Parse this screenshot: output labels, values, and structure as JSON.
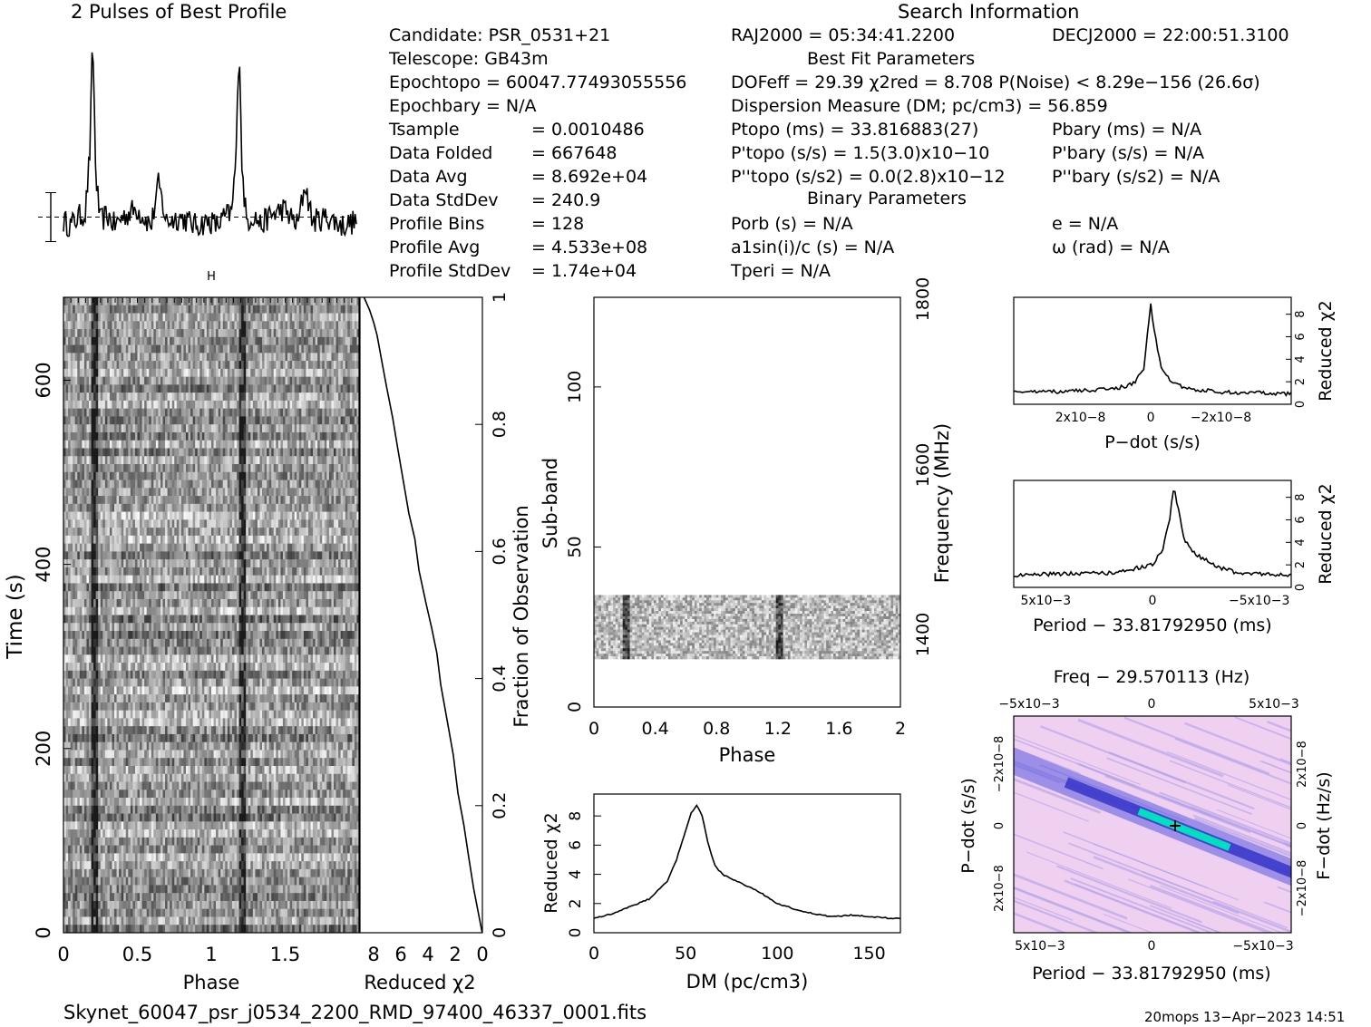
{
  "header": {
    "profile_title": "2 Pulses of Best Profile",
    "search_title": "Search Information",
    "best_fit_title": "Best Fit Parameters",
    "binary_title": "Binary Parameters"
  },
  "params": {
    "candidate": "Candidate:  PSR_0531+21",
    "telescope": "Telescope:  GB43m",
    "epoch_topo": "Epochtopo = 60047.77493055556",
    "epoch_bary": "Epochbary = N/A",
    "t_sample_label": "Tsample",
    "t_sample_value": "=   0.0010486",
    "data_folded": [
      "Data Folded",
      "=   667648"
    ],
    "data_avg": [
      "Data Avg",
      "=   8.692e+04"
    ],
    "data_stddev": [
      "Data StdDev",
      "=   240.9"
    ],
    "profile_bins": [
      "Profile Bins",
      "=   128"
    ],
    "profile_avg": [
      "Profile Avg",
      "=   4.533e+08"
    ],
    "profile_stddev": [
      "Profile StdDev",
      "=   1.74e+04"
    ]
  },
  "search": {
    "ra": "RAJ2000 = 05:34:41.2200",
    "dec": "DECJ2000 = 22:00:51.3100",
    "dof": "DOFeff = 29.39  χ2red = 8.708  P(Noise) < 8.29e−156  (26.6σ)",
    "dm": "Dispersion Measure (DM; pc/cm3) = 56.859",
    "p_topo": "Ptopo (ms) =  33.816883(27)",
    "p_bary": "Pbary (ms) = N/A",
    "pd_topo": "P'topo (s/s) =  1.5(3.0)x10−10",
    "pd_bary": "P'bary (s/s) = N/A",
    "pdd_topo": "P''topo (s/s2) = 0.0(2.8)x10−12",
    "pdd_bary": "P''bary (s/s2) = N/A",
    "p_orb": "Porb (s) = N/A",
    "e": "e = N/A",
    "a1sini": "a1sin(i)/c (s) = N/A",
    "omega": "ω (rad) = N/A",
    "t_peri": "Tperi = N/A"
  },
  "footer": {
    "filename": "Skynet_60047_psr_j0534_2200_RMD_97400_46337_0001.fits",
    "stamp": "20mops 13−Apr−2023 14:51"
  },
  "colors": {
    "ink": "#000000",
    "ppdot_low": "#f0d0f0",
    "ppdot_mid": "#5a5ae0",
    "ppdot_high": "#00e0c0"
  },
  "chart_data": [
    {
      "type": "line",
      "id": "profile",
      "title": "2 Pulses of Best Profile",
      "xlim": [
        0,
        2
      ],
      "x": [
        0.0,
        0.05,
        0.1,
        0.15,
        0.18,
        0.2,
        0.22,
        0.25,
        0.3,
        0.35,
        0.4,
        0.5,
        0.6,
        0.65,
        0.7,
        0.8,
        0.9,
        1.0,
        1.05,
        1.1,
        1.15,
        1.18,
        1.2,
        1.22,
        1.25,
        1.3,
        1.35,
        1.4,
        1.5,
        1.6,
        1.65,
        1.7,
        1.8,
        1.9,
        2.0
      ],
      "values": [
        0.12,
        0.1,
        0.14,
        0.16,
        0.45,
        1.0,
        0.35,
        0.12,
        0.15,
        0.1,
        0.14,
        0.18,
        0.1,
        0.3,
        0.12,
        0.14,
        0.1,
        0.12,
        0.1,
        0.14,
        0.16,
        0.45,
        1.0,
        0.35,
        0.12,
        0.15,
        0.1,
        0.14,
        0.18,
        0.1,
        0.3,
        0.12,
        0.14,
        0.1,
        0.12
      ]
    },
    {
      "type": "heatmap",
      "id": "time-phase",
      "xlabel": "Phase",
      "ylabel": "Time (s)",
      "xlim": [
        0,
        2
      ],
      "ylim": [
        0,
        690
      ],
      "x_ticks": [
        "0",
        "0.5",
        "1",
        "1.5"
      ],
      "y_ticks": [
        "0",
        "200",
        "400",
        "600"
      ],
      "pulse_phases": [
        0.21,
        1.21
      ]
    },
    {
      "type": "line",
      "id": "reduced-chi2-time",
      "xlabel": "Reduced χ2",
      "ylabel": "Fraction of Observation",
      "xlim": [
        9,
        0
      ],
      "ylim": [
        0,
        1
      ],
      "x_ticks": [
        "8",
        "6",
        "4",
        "2",
        "0"
      ],
      "y_ticks": [
        "0",
        "0.2",
        "0.4",
        "0.6",
        "0.8",
        "1"
      ],
      "x": [
        0.0,
        0.3,
        0.7,
        1.0,
        1.4,
        1.8,
        2.2,
        2.6,
        3.0,
        3.4,
        3.8,
        4.2,
        4.6,
        5.0,
        5.4,
        5.8,
        6.2,
        6.6,
        7.0,
        7.4,
        7.8,
        8.0,
        8.3,
        8.7
      ],
      "y": [
        0.0,
        0.03,
        0.07,
        0.12,
        0.17,
        0.22,
        0.28,
        0.34,
        0.39,
        0.44,
        0.48,
        0.52,
        0.57,
        0.62,
        0.66,
        0.71,
        0.76,
        0.81,
        0.86,
        0.9,
        0.94,
        0.96,
        0.98,
        1.0
      ]
    },
    {
      "type": "heatmap",
      "id": "subband-phase",
      "xlabel": "Phase",
      "ylabel": "Sub-band",
      "y2label": "Frequency (MHz)",
      "xlim": [
        0,
        2
      ],
      "ylim": [
        0,
        128
      ],
      "x_ticks": [
        "0",
        "0.4",
        "0.8",
        "1.2",
        "1.6",
        "2"
      ],
      "y_ticks": [
        "0",
        "50",
        "100"
      ],
      "y2_ticks": [
        "1400",
        "1600",
        "1800"
      ],
      "data_subbands": [
        15,
        35
      ],
      "pulse_phases": [
        0.21,
        1.21
      ]
    },
    {
      "type": "line",
      "id": "dm-chi2",
      "xlabel": "DM (pc/cm3)",
      "ylabel": "Reduced χ2",
      "xlim": [
        0,
        167
      ],
      "ylim": [
        0,
        9.5
      ],
      "x_ticks": [
        "0",
        "50",
        "100",
        "150"
      ],
      "y_ticks": [
        "0",
        "2",
        "4",
        "6",
        "8"
      ],
      "x": [
        0,
        10,
        20,
        30,
        40,
        45,
        50,
        53,
        56,
        59,
        62,
        66,
        70,
        80,
        90,
        100,
        110,
        120,
        130,
        140,
        150,
        160,
        167
      ],
      "y": [
        1.0,
        1.3,
        1.8,
        2.3,
        3.5,
        5.0,
        7.0,
        8.2,
        8.7,
        8.0,
        6.2,
        4.6,
        4.0,
        3.4,
        2.8,
        2.0,
        1.6,
        1.3,
        1.1,
        1.2,
        1.1,
        1.0,
        1.0
      ]
    },
    {
      "type": "line",
      "id": "pdot-chi2",
      "xlabel": "P−dot (s/s)",
      "ylabel": "Reduced χ2",
      "xlim": [
        3.9e-08,
        -4e-08
      ],
      "ylim": [
        0,
        9.5
      ],
      "x_ticks": [
        "2x10−8",
        "0",
        "−2x10−8"
      ],
      "y_ticks": [
        "0",
        "2",
        "4",
        "6",
        "8"
      ],
      "x": [
        3.9e-08,
        3e-08,
        2e-08,
        1e-08,
        5e-09,
        2e-09,
        1e-09,
        0.0,
        -1e-09,
        -3e-09,
        -6e-09,
        -1e-08,
        -2e-08,
        -3e-08,
        -4e-08
      ],
      "y": [
        1.0,
        1.1,
        1.2,
        1.4,
        1.8,
        3.0,
        6.0,
        9.0,
        6.5,
        3.2,
        2.0,
        1.4,
        1.1,
        1.0,
        0.9
      ]
    },
    {
      "type": "line",
      "id": "period-chi2",
      "xlabel": "Period − 33.81792950 (ms)",
      "ylabel": "Reduced χ2",
      "xlim": [
        0.0065,
        -0.0065
      ],
      "ylim": [
        0,
        9.5
      ],
      "x_ticks": [
        "5x10−3",
        "0",
        "−5x10−3"
      ],
      "y_ticks": [
        "0",
        "2",
        "4",
        "6",
        "8"
      ],
      "x": [
        0.0065,
        0.004,
        0.002,
        0.001,
        0.0,
        -0.0005,
        -0.0008,
        -0.001,
        -0.0012,
        -0.0015,
        -0.002,
        -0.003,
        -0.004,
        -0.005,
        -0.0065
      ],
      "y": [
        1.1,
        1.2,
        1.3,
        1.6,
        2.0,
        3.5,
        6.0,
        9.0,
        7.0,
        4.2,
        3.0,
        1.8,
        1.3,
        1.2,
        1.1
      ]
    },
    {
      "type": "heatmap",
      "id": "p-pdot",
      "title": "Freq − 29.570113 (Hz)",
      "xlabel": "Period − 33.81792950 (ms)",
      "ylabel": "P−dot (s/s)",
      "y2label": "F−dot (Hz/s)",
      "x_ticks": [
        "5x10−3",
        "0",
        "−5x10−3"
      ],
      "x2_ticks": [
        "−5x10−3",
        "0",
        "5x10−3"
      ],
      "y_ticks": [
        "−2x10−8",
        "0",
        "2x10−8"
      ],
      "y2_ticks": [
        "2x10−8",
        "0",
        "−2x10−8"
      ],
      "best": [
        -0.001,
        0.0
      ]
    }
  ]
}
